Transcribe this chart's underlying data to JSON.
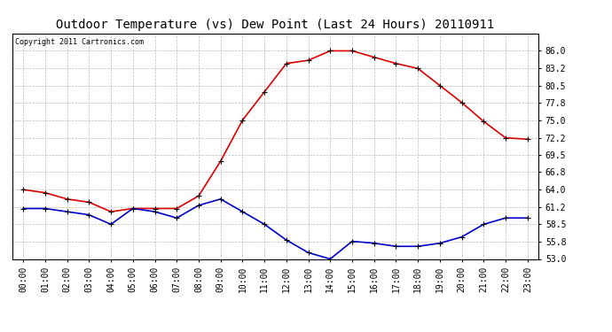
{
  "title": "Outdoor Temperature (vs) Dew Point (Last 24 Hours) 20110911",
  "copyright": "Copyright 2011 Cartronics.com",
  "hours": [
    "00:00",
    "01:00",
    "02:00",
    "03:00",
    "04:00",
    "05:00",
    "06:00",
    "07:00",
    "08:00",
    "09:00",
    "10:00",
    "11:00",
    "12:00",
    "13:00",
    "14:00",
    "15:00",
    "16:00",
    "17:00",
    "18:00",
    "19:00",
    "20:00",
    "21:00",
    "22:00",
    "23:00"
  ],
  "temp": [
    64.0,
    63.5,
    62.5,
    62.0,
    60.5,
    61.0,
    61.0,
    61.0,
    63.0,
    68.5,
    75.0,
    79.5,
    84.0,
    84.5,
    86.0,
    86.0,
    85.0,
    84.0,
    83.2,
    80.5,
    77.8,
    74.8,
    72.2,
    72.0
  ],
  "dew": [
    61.0,
    61.0,
    60.5,
    60.0,
    58.5,
    61.0,
    60.5,
    59.5,
    61.5,
    62.5,
    60.5,
    58.5,
    56.0,
    54.0,
    53.0,
    55.8,
    55.5,
    55.0,
    55.0,
    55.5,
    56.5,
    58.5,
    59.5,
    59.5
  ],
  "temp_color": "#dd0000",
  "dew_color": "#0000cc",
  "ylim_min": 53.0,
  "ylim_max": 88.8,
  "yticks": [
    53.0,
    55.8,
    58.5,
    61.2,
    64.0,
    66.8,
    69.5,
    72.2,
    75.0,
    77.8,
    80.5,
    83.2,
    86.0
  ],
  "bg_color": "#ffffff",
  "grid_color": "#bbbbbb",
  "title_fontsize": 10,
  "copyright_fontsize": 6,
  "axis_label_fontsize": 7,
  "line_width": 1.2,
  "marker": "+",
  "marker_size": 4,
  "marker_color": "#000000"
}
